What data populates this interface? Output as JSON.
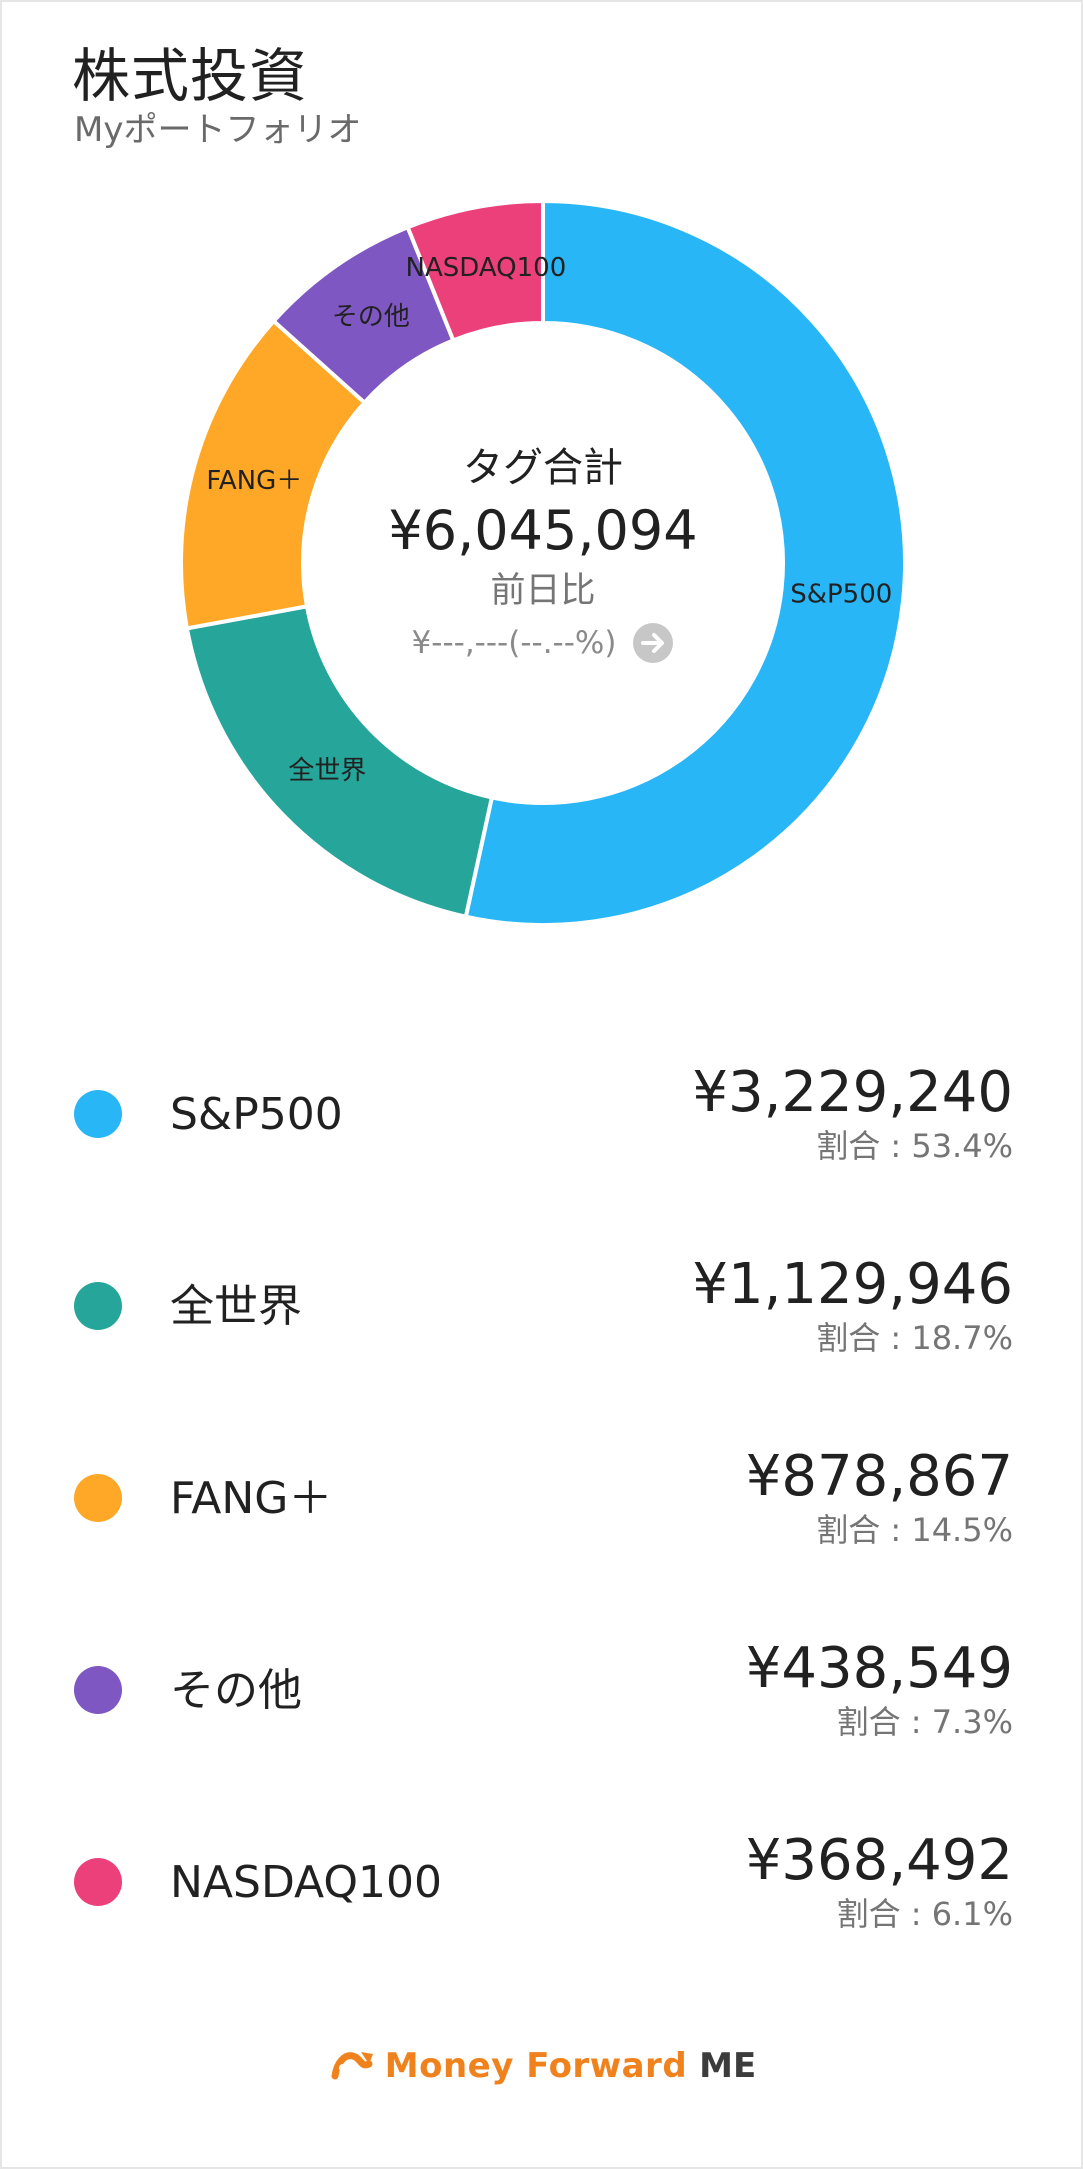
{
  "header": {
    "title": "株式投資",
    "subtitle": "Myポートフォリオ"
  },
  "summary": {
    "label": "タグ合計",
    "total": "¥6,045,094",
    "compare_label": "前日比",
    "compare_value": "¥---,---(--.--%)"
  },
  "legend": [
    {
      "name": "S&P500",
      "amount": "¥3,229,240",
      "share": "割合 : 53.4%",
      "color": "#29b6f6"
    },
    {
      "name": "全世界",
      "amount": "¥1,129,946",
      "share": "割合 : 18.7%",
      "color": "#26a69a"
    },
    {
      "name": "FANG＋",
      "amount": "¥878,867",
      "share": "割合 : 14.5%",
      "color": "#ffa726"
    },
    {
      "name": "その他",
      "amount": "¥438,549",
      "share": "割合 : 7.3%",
      "color": "#7e57c2"
    },
    {
      "name": "NASDAQ100",
      "amount": "¥368,492",
      "share": "割合 : 6.1%",
      "color": "#ec407a"
    }
  ],
  "chart_data": {
    "type": "pie",
    "categories": [
      "S&P500",
      "全世界",
      "FANG＋",
      "その他",
      "NASDAQ100"
    ],
    "values": [
      3229240,
      1129946,
      878867,
      438549,
      368492
    ],
    "percent": [
      53.4,
      18.7,
      14.5,
      7.3,
      6.1
    ],
    "colors": [
      "#29b6f6",
      "#26a69a",
      "#ffa726",
      "#7e57c2",
      "#ec407a"
    ],
    "donut": true,
    "start": "top",
    "direction": "clockwise",
    "legend_placement": "bottom"
  },
  "footer": {
    "brand_name": "Money Forward",
    "brand_suffix": "ME",
    "logo_icon": "money-forward-logo-icon",
    "arrow_icon": "arrow-right-circle-icon"
  }
}
